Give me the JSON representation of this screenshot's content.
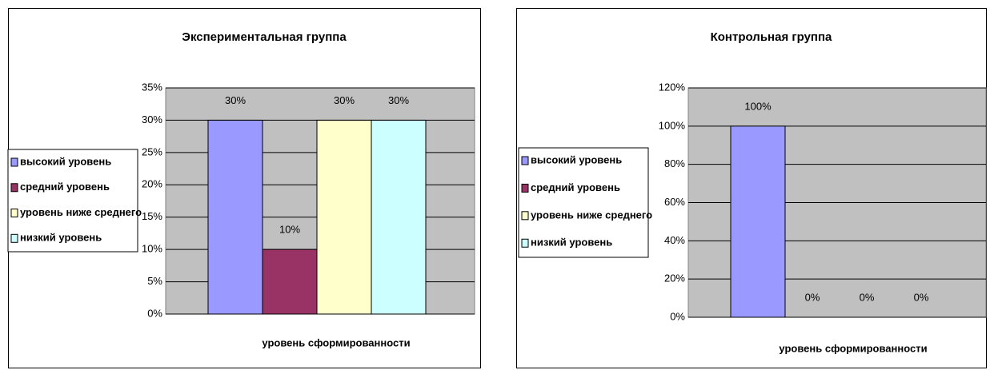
{
  "chart_data": [
    {
      "type": "bar",
      "title": "Экспериментальная группа",
      "x_label": "уровень сформированности",
      "ylim": [
        0,
        35
      ],
      "yticks": [
        {
          "value": 0,
          "label": "0%"
        },
        {
          "value": 5,
          "label": "5%"
        },
        {
          "value": 10,
          "label": "10%"
        },
        {
          "value": 15,
          "label": "15%"
        },
        {
          "value": 20,
          "label": "20%"
        },
        {
          "value": 25,
          "label": "25%"
        },
        {
          "value": 30,
          "label": "30%"
        },
        {
          "value": 35,
          "label": "35%"
        }
      ],
      "grid": true,
      "legend": "left",
      "series": [
        {
          "name": "высокий уровень",
          "color": "#9999ff",
          "values": [
            30
          ],
          "value_labels": [
            "30%"
          ]
        },
        {
          "name": "средний уровень",
          "color": "#993366",
          "values": [
            10
          ],
          "value_labels": [
            "10%"
          ]
        },
        {
          "name": "уровень ниже среднего",
          "color": "#ffffcc",
          "values": [
            30
          ],
          "value_labels": [
            "30%"
          ]
        },
        {
          "name": "низкий уровень",
          "color": "#ccffff",
          "values": [
            30
          ],
          "value_labels": [
            "30%"
          ]
        }
      ]
    },
    {
      "type": "bar",
      "title": "Контрольная группа",
      "x_label": "уровень сформированности",
      "ylim": [
        0,
        120
      ],
      "yticks": [
        {
          "value": 0,
          "label": "0%"
        },
        {
          "value": 20,
          "label": "20%"
        },
        {
          "value": 40,
          "label": "40%"
        },
        {
          "value": 60,
          "label": "60%"
        },
        {
          "value": 80,
          "label": "80%"
        },
        {
          "value": 100,
          "label": "100%"
        },
        {
          "value": 120,
          "label": "120%"
        }
      ],
      "grid": true,
      "legend": "left",
      "series": [
        {
          "name": "высокий уровень",
          "color": "#9999ff",
          "values": [
            100
          ],
          "value_labels": [
            "100%"
          ]
        },
        {
          "name": "средний уровень",
          "color": "#993366",
          "values": [
            0
          ],
          "value_labels": [
            "0%"
          ]
        },
        {
          "name": "уровень ниже среднего",
          "color": "#ffffcc",
          "values": [
            0
          ],
          "value_labels": [
            "0%"
          ]
        },
        {
          "name": "низкий уровень",
          "color": "#ccffff",
          "values": [
            0
          ],
          "value_labels": [
            "0%"
          ]
        }
      ]
    }
  ]
}
